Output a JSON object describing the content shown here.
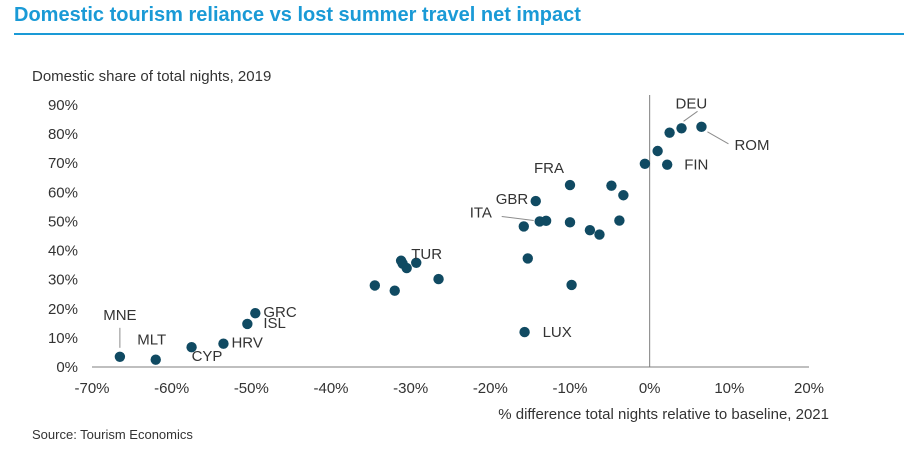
{
  "header": {
    "title": "Domestic tourism reliance vs lost summer travel net impact"
  },
  "footer": {
    "source": "Source: Tourism Economics"
  },
  "chart_data": {
    "type": "scatter",
    "title": "Domestic tourism reliance vs lost summer travel net impact",
    "xlabel": "% difference total nights relative to baseline, 2021",
    "ylabel": "Domestic share of total nights, 2019",
    "xlim": [
      -0.7,
      0.2
    ],
    "ylim": [
      0,
      0.9
    ],
    "x_ticks": [
      "-70%",
      "-60%",
      "-50%",
      "-40%",
      "-30%",
      "-20%",
      "-10%",
      "0%",
      "10%",
      "20%"
    ],
    "y_ticks": [
      "0%",
      "10%",
      "20%",
      "30%",
      "40%",
      "50%",
      "60%",
      "70%",
      "80%",
      "90%"
    ],
    "grid": false,
    "colors": {
      "point": "#104a62",
      "title": "#1a9ad6",
      "leader": "#8c8c8c"
    },
    "points": [
      {
        "label": "MNE",
        "x": -0.665,
        "y": 0.035
      },
      {
        "label": "MLT",
        "x": -0.62,
        "y": 0.025
      },
      {
        "label": "CYP",
        "x": -0.575,
        "y": 0.068
      },
      {
        "label": "HRV",
        "x": -0.535,
        "y": 0.08
      },
      {
        "label": "ISL",
        "x": -0.505,
        "y": 0.148
      },
      {
        "label": "GRC",
        "x": -0.495,
        "y": 0.185
      },
      {
        "label": "",
        "x": -0.345,
        "y": 0.28
      },
      {
        "label": "",
        "x": -0.32,
        "y": 0.262
      },
      {
        "label": "",
        "x": -0.312,
        "y": 0.365
      },
      {
        "label": "",
        "x": -0.31,
        "y": 0.355
      },
      {
        "label": "",
        "x": -0.305,
        "y": 0.34
      },
      {
        "label": "TUR",
        "x": -0.293,
        "y": 0.358
      },
      {
        "label": "",
        "x": -0.265,
        "y": 0.302
      },
      {
        "label": "",
        "x": -0.158,
        "y": 0.483
      },
      {
        "label": "",
        "x": -0.153,
        "y": 0.373
      },
      {
        "label": "LUX",
        "x": -0.157,
        "y": 0.12
      },
      {
        "label": "GBR",
        "x": -0.143,
        "y": 0.57
      },
      {
        "label": "ITA",
        "x": -0.138,
        "y": 0.5
      },
      {
        "label": "",
        "x": -0.13,
        "y": 0.502
      },
      {
        "label": "FRA",
        "x": -0.1,
        "y": 0.625
      },
      {
        "label": "",
        "x": -0.1,
        "y": 0.497
      },
      {
        "label": "",
        "x": -0.098,
        "y": 0.282
      },
      {
        "label": "",
        "x": -0.075,
        "y": 0.47
      },
      {
        "label": "",
        "x": -0.063,
        "y": 0.455
      },
      {
        "label": "",
        "x": -0.048,
        "y": 0.623
      },
      {
        "label": "",
        "x": -0.038,
        "y": 0.503
      },
      {
        "label": "",
        "x": -0.033,
        "y": 0.59
      },
      {
        "label": "",
        "x": -0.006,
        "y": 0.698
      },
      {
        "label": "",
        "x": 0.01,
        "y": 0.742
      },
      {
        "label": "FIN",
        "x": 0.022,
        "y": 0.695
      },
      {
        "label": "",
        "x": 0.025,
        "y": 0.805
      },
      {
        "label": "DEU",
        "x": 0.04,
        "y": 0.82
      },
      {
        "label": "ROM",
        "x": 0.065,
        "y": 0.825
      }
    ]
  }
}
